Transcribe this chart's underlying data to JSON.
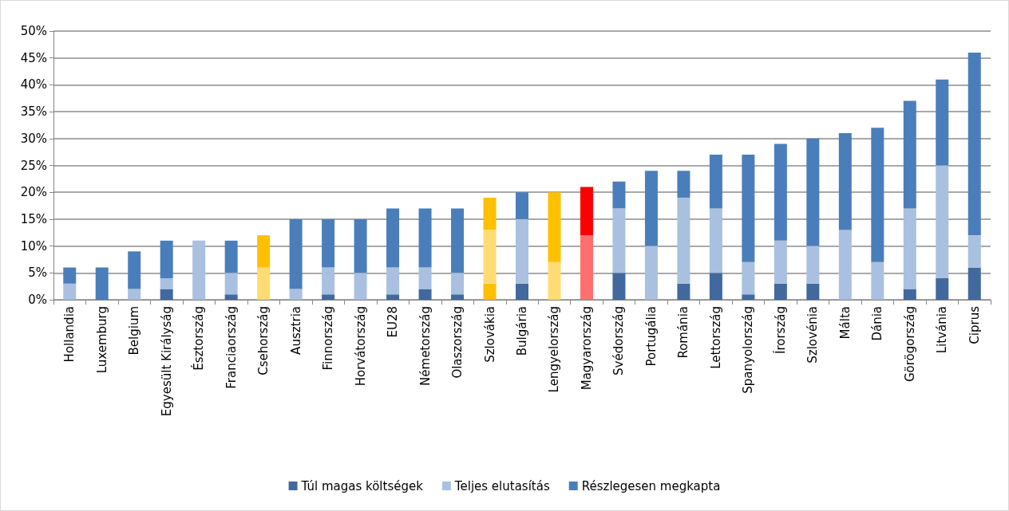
{
  "chart_data": {
    "type": "bar",
    "stacked": true,
    "categories": [
      "Hollandia",
      "Luxemburg",
      "Belgium",
      "Egyesült Királyság",
      "Észtország",
      "Franciaország",
      "Csehország",
      "Ausztria",
      "Finnország",
      "Horvátország",
      "EU28",
      "Németország",
      "Olaszország",
      "Szlovákia",
      "Bulgária",
      "Lengyelország",
      "Magyarország",
      "Svédország",
      "Portugália",
      "Románia",
      "Lettország",
      "Spanyolország",
      "Írország",
      "Szlovénia",
      "Málta",
      "Dánia",
      "Görögország",
      "Litvánia",
      "Ciprus"
    ],
    "series": [
      {
        "name": "Túl magas költségek",
        "color": "#41699e",
        "values": [
          0,
          0,
          0,
          2,
          0,
          1,
          0,
          0,
          1,
          0,
          1,
          2,
          1,
          3,
          3,
          0,
          0,
          5,
          0,
          3,
          5,
          1,
          3,
          3,
          0,
          0,
          2,
          4,
          6
        ],
        "colors": [
          "#41699e",
          "#41699e",
          "#41699e",
          "#41699e",
          "#41699e",
          "#41699e",
          "#ffc000",
          "#41699e",
          "#41699e",
          "#41699e",
          "#41699e",
          "#41699e",
          "#41699e",
          "#ffc000",
          "#41699e",
          "#ffc000",
          "#ff0000",
          "#41699e",
          "#41699e",
          "#41699e",
          "#41699e",
          "#41699e",
          "#41699e",
          "#41699e",
          "#41699e",
          "#41699e",
          "#41699e",
          "#41699e",
          "#41699e"
        ]
      },
      {
        "name": "Teljes elutasítás",
        "color": "#a9c0e0",
        "values": [
          3,
          0,
          2,
          2,
          11,
          4,
          6,
          2,
          5,
          5,
          5,
          4,
          4,
          10,
          12,
          7,
          12,
          12,
          10,
          16,
          12,
          6,
          8,
          7,
          13,
          7,
          15,
          21,
          6
        ],
        "colors": [
          "#a9c0e0",
          "#a9c0e0",
          "#a9c0e0",
          "#a9c0e0",
          "#a9c0e0",
          "#a9c0e0",
          "#ffdc73",
          "#a9c0e0",
          "#a9c0e0",
          "#a9c0e0",
          "#a9c0e0",
          "#a9c0e0",
          "#a9c0e0",
          "#ffdc73",
          "#a9c0e0",
          "#ffdc73",
          "#ff6f6f",
          "#a9c0e0",
          "#a9c0e0",
          "#a9c0e0",
          "#a9c0e0",
          "#a9c0e0",
          "#a9c0e0",
          "#a9c0e0",
          "#a9c0e0",
          "#a9c0e0",
          "#a9c0e0",
          "#a9c0e0",
          "#a9c0e0"
        ]
      },
      {
        "name": "Részlegesen megkapta",
        "color": "#4a7ebb",
        "values": [
          3,
          6,
          7,
          7,
          0,
          6,
          6,
          13,
          9,
          10,
          11,
          11,
          12,
          6,
          5,
          13,
          9,
          5,
          14,
          5,
          10,
          20,
          18,
          20,
          18,
          25,
          20,
          16,
          34
        ],
        "colors": [
          "#4a7ebb",
          "#4a7ebb",
          "#4a7ebb",
          "#4a7ebb",
          "#4a7ebb",
          "#4a7ebb",
          "#ffc000",
          "#4a7ebb",
          "#4a7ebb",
          "#4a7ebb",
          "#4a7ebb",
          "#4a7ebb",
          "#4a7ebb",
          "#ffc000",
          "#4a7ebb",
          "#ffc000",
          "#ff0000",
          "#4a7ebb",
          "#4a7ebb",
          "#4a7ebb",
          "#4a7ebb",
          "#4a7ebb",
          "#4a7ebb",
          "#4a7ebb",
          "#4a7ebb",
          "#4a7ebb",
          "#4a7ebb",
          "#4a7ebb",
          "#4a7ebb"
        ]
      }
    ],
    "ylim": [
      0,
      50
    ],
    "yticks": [
      {
        "value": 0,
        "label": "0%"
      },
      {
        "value": 5,
        "label": "5%"
      },
      {
        "value": 10,
        "label": "10%"
      },
      {
        "value": 15,
        "label": "15%"
      },
      {
        "value": 20,
        "label": "20%"
      },
      {
        "value": 25,
        "label": "25%"
      },
      {
        "value": 30,
        "label": "30%"
      },
      {
        "value": 35,
        "label": "35%"
      },
      {
        "value": 40,
        "label": "40%"
      },
      {
        "value": 45,
        "label": "45%"
      },
      {
        "value": 50,
        "label": "50%"
      }
    ],
    "grid": "y",
    "legend": "bottom"
  }
}
